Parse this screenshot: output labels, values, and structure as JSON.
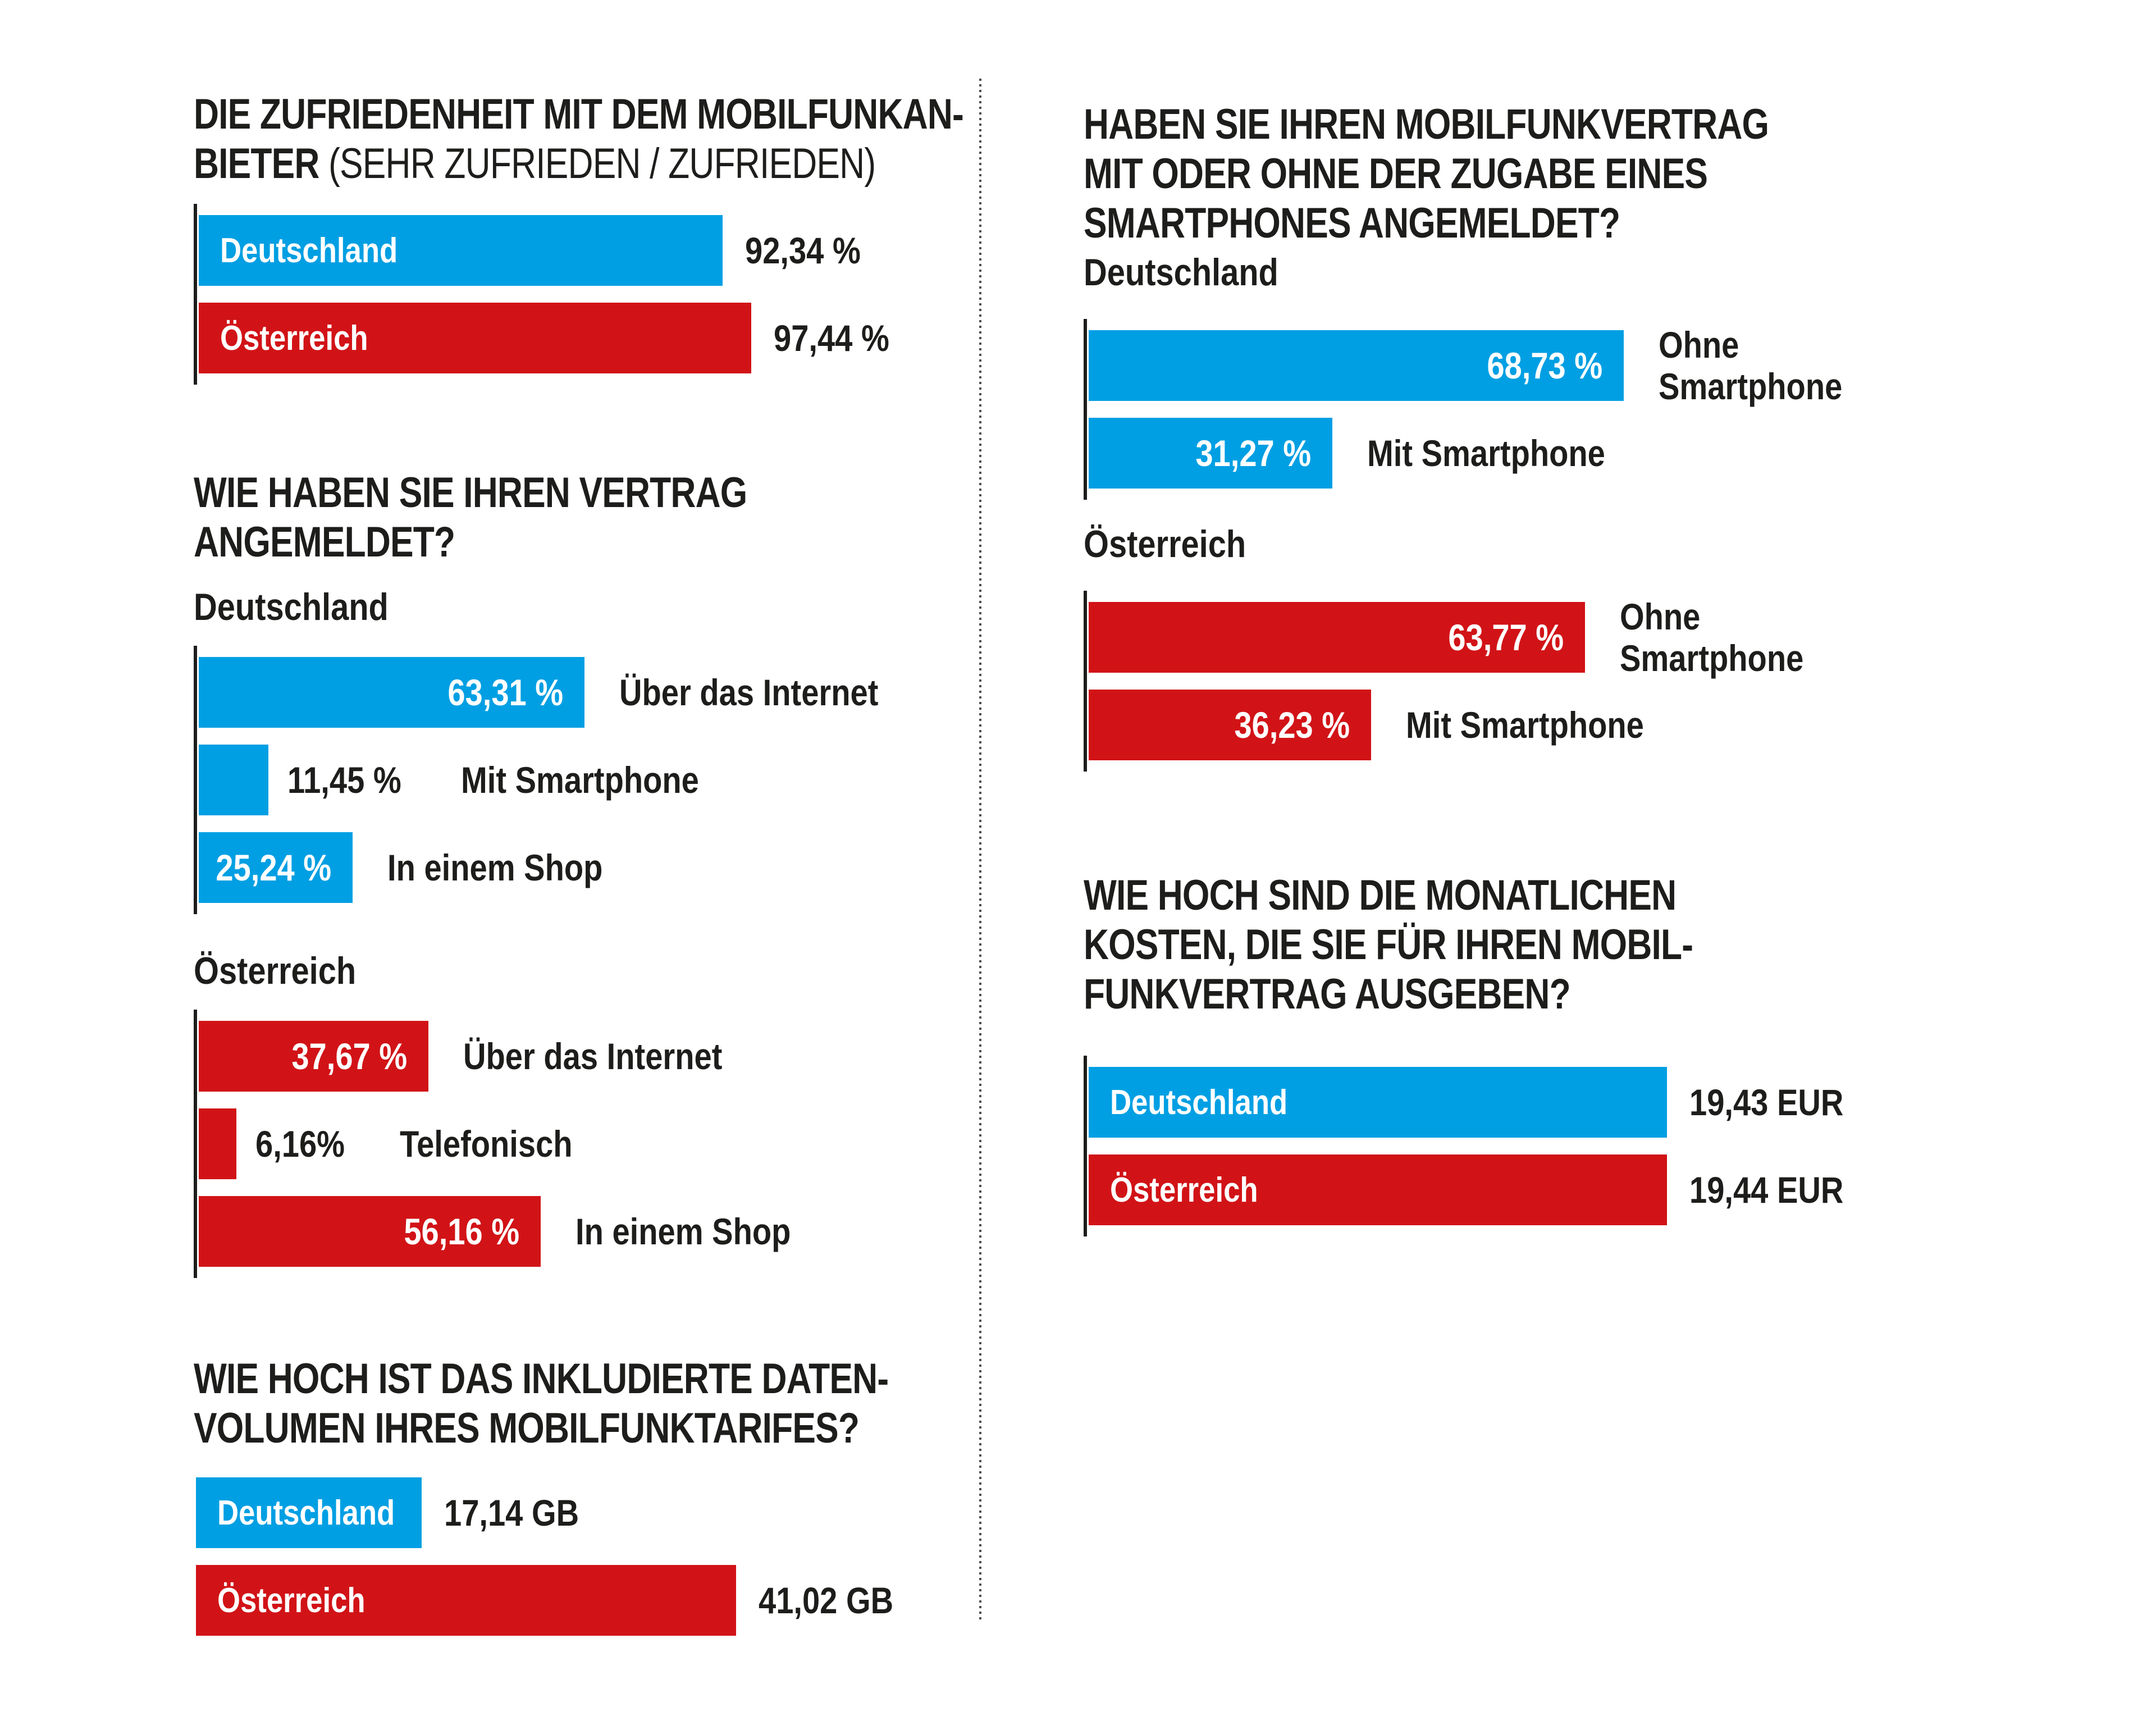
{
  "colors": {
    "blue": "#009FE3",
    "red": "#D11317",
    "text": "#1D1D1B"
  },
  "charts": {
    "q1": {
      "title_line1": "DIE ZUFRIEDENHEIT MIT DEM MOBILFUNKAN-",
      "title_line2_strong": "BIETER",
      "title_line2_light": " (SEHR ZUFRIEDEN / ZUFRIEDEN)",
      "bars": [
        {
          "label": "Deutschland",
          "value": "92,34 %",
          "amount": 92.34,
          "color": "blue"
        },
        {
          "label": "Österreich",
          "value": "97,44 %",
          "amount": 97.44,
          "color": "red"
        }
      ]
    },
    "q2": {
      "title": [
        "WIE HABEN SIE IHREN VERTRAG",
        "ANGEMELDET?"
      ],
      "groups": [
        {
          "name": "Deutschland",
          "color": "blue",
          "bars": [
            {
              "label": "Über das Internet",
              "value": "63,31 %",
              "amount": 63.31,
              "value_inside": true
            },
            {
              "label": "Mit Smartphone",
              "value": "11,45 %",
              "amount": 11.45,
              "value_inside": false
            },
            {
              "label": "In einem Shop",
              "value": "25,24 %",
              "amount": 25.24,
              "value_inside": true
            }
          ]
        },
        {
          "name": "Österreich",
          "color": "red",
          "bars": [
            {
              "label": "Über das Internet",
              "value": "37,67 %",
              "amount": 37.67,
              "value_inside": true
            },
            {
              "label": "Telefonisch",
              "value": "6,16%",
              "amount": 6.16,
              "value_inside": false
            },
            {
              "label": "In einem Shop",
              "value": "56,16 %",
              "amount": 56.16,
              "value_inside": true
            }
          ]
        }
      ]
    },
    "q3": {
      "title": [
        "WIE HOCH IST DAS INKLUDIERTE DATEN-",
        "VOLUMEN IHRES MOBILFUNKTARIFES?"
      ],
      "bars": [
        {
          "label": "Deutschland",
          "value": "17,14 GB",
          "amount": 17.14,
          "color": "blue"
        },
        {
          "label": "Österreich",
          "value": "41,02 GB",
          "amount": 41.02,
          "color": "red"
        }
      ]
    },
    "q4": {
      "title": [
        "HABEN SIE IHREN MOBILFUNKVERTRAG",
        "MIT ODER OHNE DER ZUGABE EINES",
        "SMARTPHONES ANGEMELDET?"
      ],
      "groups": [
        {
          "name": "Deutschland",
          "color": "blue",
          "bars": [
            {
              "label": "Ohne\nSmartphone",
              "value": "68,73 %",
              "amount": 68.73,
              "value_inside": true,
              "label_multiline": true
            },
            {
              "label": "Mit Smartphone",
              "value": "31,27 %",
              "amount": 31.27,
              "value_inside": true
            }
          ]
        },
        {
          "name": "Österreich",
          "color": "red",
          "bars": [
            {
              "label": "Ohne\nSmartphone",
              "value": "63,77 %",
              "amount": 63.77,
              "value_inside": true,
              "label_multiline": true
            },
            {
              "label": "Mit Smartphone",
              "value": "36,23 %",
              "amount": 36.23,
              "value_inside": true
            }
          ]
        }
      ]
    },
    "q5": {
      "title": [
        "WIE HOCH SIND DIE MONATLICHEN",
        "KOSTEN, DIE SIE FÜR IHREN MOBIL-",
        "FUNKVERTRAG AUSGEBEN?"
      ],
      "bars": [
        {
          "label": "Deutschland",
          "value": "19,43 EUR",
          "amount": 19.43,
          "color": "blue"
        },
        {
          "label": "Österreich",
          "value": "19,44 EUR",
          "amount": 19.44,
          "color": "red"
        }
      ]
    }
  },
  "chart_data": [
    {
      "type": "bar",
      "orientation": "horizontal",
      "unit": "%",
      "title": "DIE ZUFRIEDENHEIT MIT DEM MOBILFUNKANBIETER (SEHR ZUFRIEDEN / ZUFRIEDEN)",
      "categories": [
        "Deutschland",
        "Österreich"
      ],
      "values": [
        92.34,
        97.44
      ],
      "colors": [
        "#009FE3",
        "#D11317"
      ],
      "grid": false,
      "legend": "none"
    },
    {
      "type": "bar",
      "orientation": "horizontal",
      "unit": "%",
      "title": "WIE HABEN SIE IHREN VERTRAG ANGEMELDET?",
      "series": [
        {
          "name": "Deutschland",
          "color": "#009FE3",
          "categories": [
            "Über das Internet",
            "Mit Smartphone",
            "In einem Shop"
          ],
          "values": [
            63.31,
            11.45,
            25.24
          ]
        },
        {
          "name": "Österreich",
          "color": "#D11317",
          "categories": [
            "Über das Internet",
            "Telefonisch",
            "In einem Shop"
          ],
          "values": [
            37.67,
            6.16,
            56.16
          ]
        }
      ],
      "grid": false,
      "legend": "none"
    },
    {
      "type": "bar",
      "orientation": "horizontal",
      "unit": "GB",
      "title": "WIE HOCH IST DAS INKLUDIERTE DATENVOLUMEN IHRES MOBILFUNKTARIFES?",
      "categories": [
        "Deutschland",
        "Österreich"
      ],
      "values": [
        17.14,
        41.02
      ],
      "colors": [
        "#009FE3",
        "#D11317"
      ],
      "grid": false,
      "legend": "none"
    },
    {
      "type": "bar",
      "orientation": "horizontal",
      "unit": "%",
      "title": "HABEN SIE IHREN MOBILFUNKVERTRAG MIT ODER OHNE DER ZUGABE EINES SMARTPHONES ANGEMELDET?",
      "series": [
        {
          "name": "Deutschland",
          "color": "#009FE3",
          "categories": [
            "Ohne Smartphone",
            "Mit Smartphone"
          ],
          "values": [
            68.73,
            31.27
          ]
        },
        {
          "name": "Österreich",
          "color": "#D11317",
          "categories": [
            "Ohne Smartphone",
            "Mit Smartphone"
          ],
          "values": [
            63.77,
            36.23
          ]
        }
      ],
      "grid": false,
      "legend": "none"
    },
    {
      "type": "bar",
      "orientation": "horizontal",
      "unit": "EUR",
      "title": "WIE HOCH SIND DIE MONATLICHEN KOSTEN, DIE SIE FÜR IHREN MOBILFUNKVERTRAG AUSGEBEN?",
      "categories": [
        "Deutschland",
        "Österreich"
      ],
      "values": [
        19.43,
        19.44
      ],
      "colors": [
        "#009FE3",
        "#D11317"
      ],
      "grid": false,
      "legend": "none"
    }
  ]
}
